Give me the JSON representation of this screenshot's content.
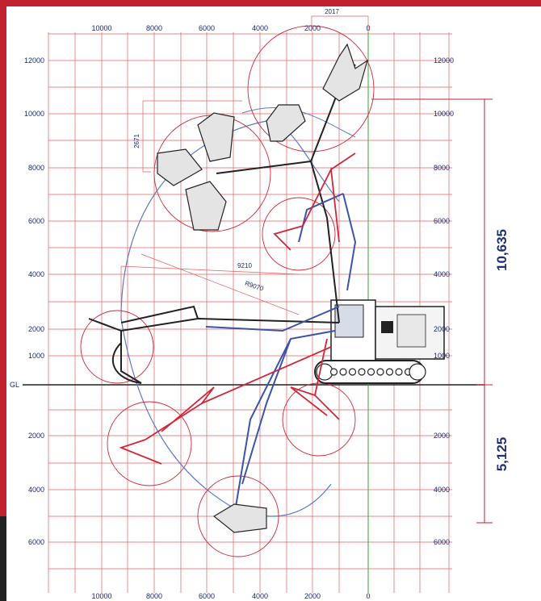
{
  "diagram": {
    "top_axis": [
      "10000",
      "8000",
      "6000",
      "4000",
      "2000",
      "0"
    ],
    "bottom_axis": [
      "10000",
      "8000",
      "6000",
      "4000",
      "2000",
      "0"
    ],
    "left_axis": [
      "12000",
      "10000",
      "8000",
      "6000",
      "4000",
      "2000",
      "1000",
      "GL",
      "2000",
      "4000",
      "6000"
    ],
    "right_axis": [
      "12000",
      "10000",
      "8000",
      "6000",
      "4000",
      "2000",
      "1000",
      "2000",
      "4000",
      "6000"
    ],
    "annotations": {
      "offset_top": "2017",
      "jaw_width": "2671",
      "reach_inner": "9210",
      "reach_radius": "R9070"
    },
    "dimensions": {
      "max_height": "10,635",
      "max_depth": "5,125"
    },
    "colors": {
      "frame_bar": "#c0232f",
      "grid": "#e06060",
      "text": "#1a2a6c",
      "arm_black": "#222222",
      "arm_blue": "#3a55a8",
      "arm_red": "#d0283a",
      "centerline": "#3aa03a"
    }
  }
}
